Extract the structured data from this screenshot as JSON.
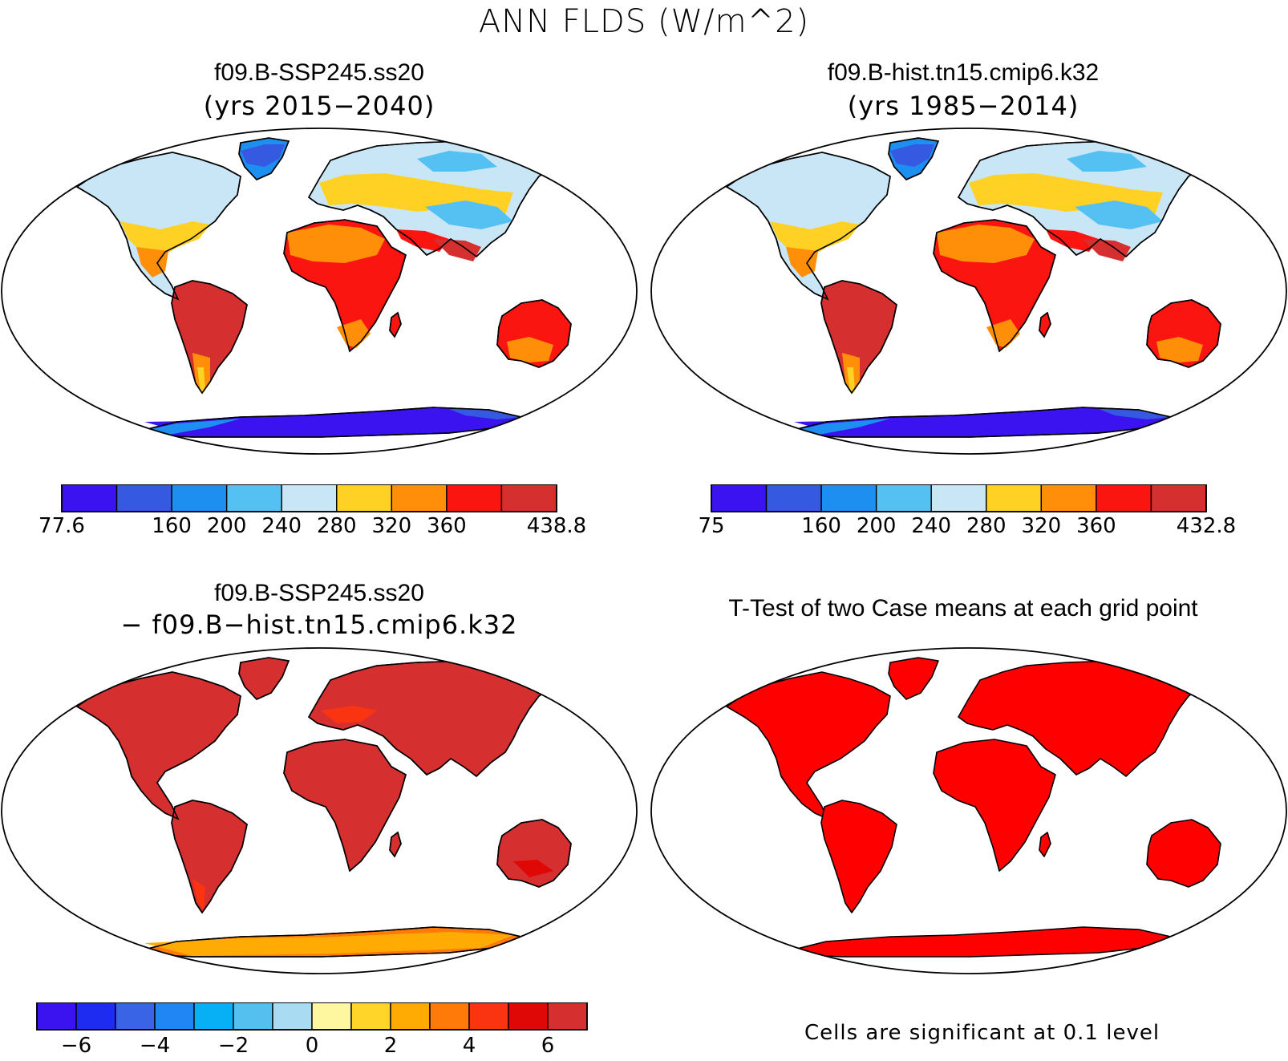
{
  "figure": {
    "title": "ANN FLDS (W/m^2)"
  },
  "panels": [
    {
      "name": "case",
      "title": "f09.B-SSP245.ss20",
      "subtitle": "(yrs 2015−2040)",
      "colorbar": {
        "colors": [
          "#3a13f0",
          "#3559e0",
          "#1d8ff0",
          "#55c0f2",
          "#c9e6f7",
          "#ffd125",
          "#ff8f08",
          "#fb1510",
          "#d62f2f"
        ],
        "tick_labels": [
          "77.6",
          "160",
          "200",
          "240",
          "280",
          "320",
          "360",
          "438.8"
        ],
        "tick_values": [
          77.6,
          160,
          200,
          240,
          280,
          320,
          360,
          438.8
        ],
        "levels": [
          120,
          160,
          200,
          240,
          280,
          320,
          360,
          400
        ],
        "min": 77.6,
        "max": 438.8
      }
    },
    {
      "name": "control",
      "title": "f09.B-hist.tn15.cmip6.k32",
      "subtitle": "(yrs 1985−2014)",
      "colorbar": {
        "colors": [
          "#3a13f0",
          "#3559e0",
          "#1d8ff0",
          "#55c0f2",
          "#c9e6f7",
          "#ffd125",
          "#ff8f08",
          "#fb1510",
          "#d62f2f"
        ],
        "tick_labels": [
          "75",
          "160",
          "200",
          "240",
          "280",
          "320",
          "360",
          "432.8"
        ],
        "tick_values": [
          75,
          160,
          200,
          240,
          280,
          320,
          360,
          432.8
        ],
        "levels": [
          120,
          160,
          200,
          240,
          280,
          320,
          360,
          400
        ],
        "min": 75,
        "max": 432.8
      }
    },
    {
      "name": "difference",
      "title": "f09.B-SSP245.ss20",
      "subtitle": "− f09.B−hist.tn15.cmip6.k32",
      "colorbar": {
        "colors": [
          "#3a13f0",
          "#1d2cf0",
          "#3a64e6",
          "#1f86f3",
          "#07b0f4",
          "#54c0f0",
          "#a9dcf3",
          "#fff7a0",
          "#ffd52a",
          "#ffab04",
          "#ff7a08",
          "#fa3410",
          "#e00707",
          "#d62f2f"
        ],
        "tick_labels": [
          "−6",
          "−4",
          "−2",
          "0",
          "2",
          "4",
          "6"
        ],
        "tick_values": [
          -6,
          -4,
          -2,
          0,
          2,
          4,
          6
        ],
        "levels": [
          -6,
          -5,
          -4,
          -3,
          -2,
          -1,
          0,
          1,
          2,
          3,
          4,
          5,
          6
        ]
      }
    },
    {
      "name": "ttest",
      "title": "T-Test of two Case means at each grid point",
      "note": "Cells are significant at 0.1 level",
      "fill_color": "#ff0000"
    }
  ]
}
